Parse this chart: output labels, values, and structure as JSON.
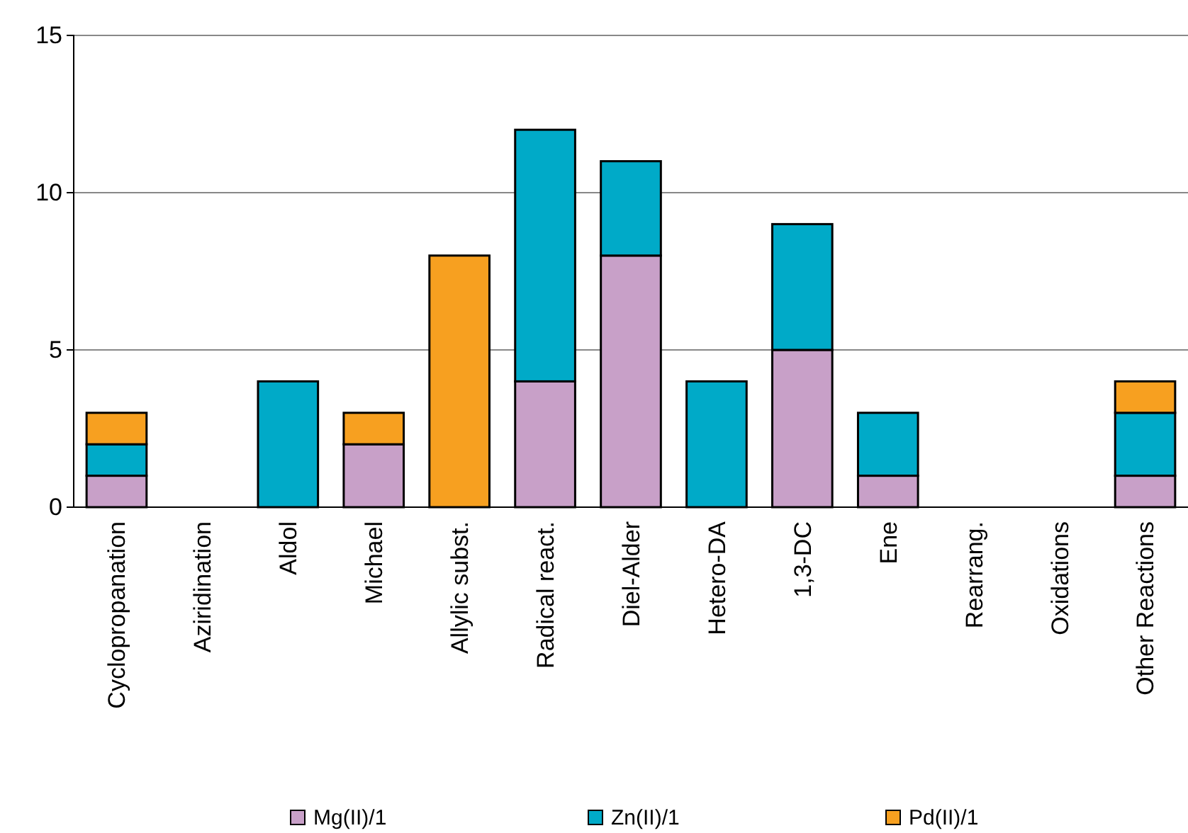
{
  "chart_data": {
    "type": "bar",
    "stacked": true,
    "categories": [
      "Cyclopropanation",
      "Aziridination",
      "Aldol",
      "Michael",
      "Allylic subst.",
      "Radical react.",
      "Diel-Alder",
      "Hetero-DA",
      "1,3-DC",
      "Ene",
      "Rearrang.",
      "Oxidations",
      "Other Reactions"
    ],
    "series": [
      {
        "name": "Mg(II)/1",
        "color": "#c8a0c8",
        "values": [
          1,
          0,
          0,
          2,
          0,
          4,
          8,
          0,
          5,
          1,
          0,
          0,
          1
        ]
      },
      {
        "name": "Zn(II)/1",
        "color": "#00aac8",
        "values": [
          1,
          0,
          4,
          0,
          0,
          8,
          3,
          4,
          4,
          2,
          0,
          0,
          2
        ]
      },
      {
        "name": "Pd(II)/1",
        "color": "#f7a020",
        "values": [
          1,
          0,
          0,
          1,
          8,
          0,
          0,
          0,
          0,
          0,
          0,
          0,
          1
        ]
      }
    ],
    "ylim": [
      0,
      15
    ],
    "yticks": [
      0,
      5,
      10,
      15
    ],
    "grid": "y",
    "legend": "bottom"
  }
}
